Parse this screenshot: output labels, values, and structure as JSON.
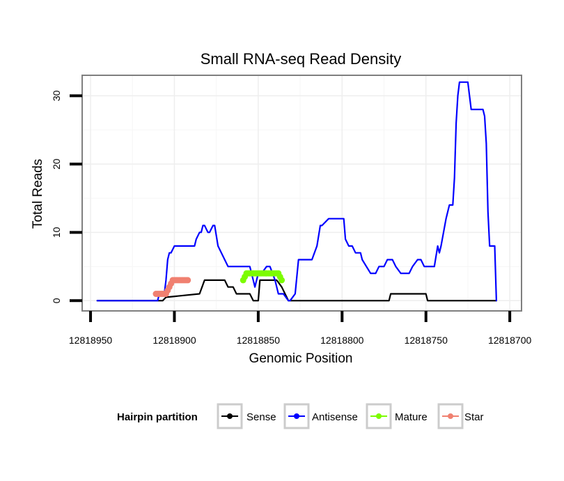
{
  "chart_data": {
    "type": "line",
    "title": "Small RNA-seq Read Density",
    "xlabel": "Genomic Position",
    "ylabel": "Total Reads",
    "x_reversed": true,
    "xlim": [
      12818955,
      12818693
    ],
    "ylim": [
      -1.5,
      33
    ],
    "x_ticks": [
      12818950,
      12818900,
      12818850,
      12818800,
      12818750,
      12818700
    ],
    "x_tick_labels": [
      "12818950",
      "12818900",
      "12818850",
      "12818800",
      "12818750",
      "12818700"
    ],
    "y_ticks": [
      0,
      10,
      20,
      30
    ],
    "y_tick_labels": [
      "0",
      "10",
      "20",
      "30"
    ],
    "legend": {
      "title": "Hairpin partition",
      "position": "bottom",
      "entries": [
        {
          "label": "Sense",
          "color": "#000000"
        },
        {
          "label": "Antisense",
          "color": "#0000ff"
        },
        {
          "label": "Mature",
          "color": "#7cfc00"
        },
        {
          "label": "Star",
          "color": "#f08070"
        }
      ]
    },
    "series": [
      {
        "name": "Sense",
        "color": "#000000",
        "markers": false,
        "x": [
          12818946,
          12818907,
          12818905,
          12818885,
          12818882,
          12818870,
          12818868,
          12818865,
          12818863,
          12818855,
          12818853,
          12818850,
          12818849,
          12818839,
          12818836,
          12818834,
          12818832,
          12818813,
          12818812,
          12818772,
          12818771,
          12818750,
          12818749,
          12818708
        ],
        "y": [
          0,
          0,
          0.5,
          1,
          3,
          3,
          2,
          2,
          1,
          1,
          0,
          0,
          3,
          3,
          2,
          1,
          0,
          0,
          0,
          0,
          1,
          1,
          0,
          0
        ]
      },
      {
        "name": "Antisense",
        "color": "#0000ff",
        "markers": false,
        "x": [
          12818946,
          12818910,
          12818909,
          12818906,
          12818905,
          12818904,
          12818903,
          12818902,
          12818900,
          12818888,
          12818887,
          12818885,
          12818884,
          12818883,
          12818882,
          12818880,
          12818879,
          12818877,
          12818876,
          12818874,
          12818872,
          12818870,
          12818868,
          12818866,
          12818863,
          12818855,
          12818853,
          12818852,
          12818850,
          12818848,
          12818845,
          12818843,
          12818840,
          12818838,
          12818835,
          12818832,
          12818831,
          12818828,
          12818826,
          12818825,
          12818823,
          12818820,
          12818818,
          12818815,
          12818813,
          12818812,
          12818808,
          12818806,
          12818805,
          12818803,
          12818800,
          12818799,
          12818798,
          12818796,
          12818794,
          12818792,
          12818790,
          12818789,
          12818788,
          12818783,
          12818782,
          12818780,
          12818778,
          12818777,
          12818775,
          12818773,
          12818770,
          12818768,
          12818765,
          12818762,
          12818760,
          12818758,
          12818755,
          12818753,
          12818751,
          12818749,
          12818747,
          12818745,
          12818743,
          12818742,
          12818741,
          12818738,
          12818736,
          12818735,
          12818734,
          12818733,
          12818732,
          12818731,
          12818730,
          12818729,
          12818728,
          12818727,
          12818726,
          12818725,
          12818724,
          12818723,
          12818722,
          12818717,
          12818716,
          12818715,
          12818714,
          12818713,
          12818712,
          12818711,
          12818710,
          12818709,
          12818708
        ],
        "y": [
          0,
          0,
          1,
          1,
          3,
          6,
          7,
          7,
          8,
          8,
          9,
          10,
          10,
          11,
          11,
          10,
          10,
          11,
          11,
          8,
          7,
          6,
          5,
          5,
          5,
          5,
          3,
          2,
          4,
          4,
          5,
          5,
          3,
          1,
          1,
          0,
          0,
          1,
          6,
          6,
          6,
          6,
          6,
          8,
          11,
          11,
          12,
          12,
          12,
          12,
          12,
          12,
          9,
          8,
          8,
          7,
          7,
          7,
          6,
          4,
          4,
          4,
          5,
          5,
          5,
          6,
          6,
          5,
          4,
          4,
          4,
          5,
          6,
          6,
          5,
          5,
          5,
          5,
          8,
          7,
          8,
          12,
          14,
          14,
          14,
          18,
          26,
          30,
          32,
          32,
          32,
          32,
          32,
          32,
          30,
          28,
          28,
          28,
          28,
          27,
          23,
          13,
          8,
          8,
          8,
          8,
          0
        ]
      },
      {
        "name": "Mature",
        "color": "#7cfc00",
        "markers": true,
        "x": [
          12818859,
          12818858,
          12818857,
          12818856,
          12818855,
          12818854,
          12818853,
          12818852,
          12818851,
          12818850,
          12818849,
          12818848,
          12818847,
          12818846,
          12818845,
          12818844,
          12818843,
          12818842,
          12818841,
          12818840,
          12818839,
          12818838,
          12818837,
          12818836
        ],
        "y": [
          3,
          3.5,
          4,
          4,
          4,
          4,
          4,
          4,
          4,
          4,
          4,
          4,
          4,
          4,
          4,
          4,
          4,
          4,
          4,
          4,
          4,
          4,
          3.5,
          3
        ]
      },
      {
        "name": "Star",
        "color": "#f08070",
        "markers": true,
        "x": [
          12818911,
          12818910,
          12818909,
          12818908,
          12818907,
          12818906,
          12818905,
          12818904,
          12818903,
          12818902,
          12818901,
          12818900,
          12818899,
          12818898,
          12818897,
          12818896,
          12818895,
          12818894,
          12818893,
          12818892
        ],
        "y": [
          1,
          1,
          1,
          1,
          1,
          1,
          1,
          1.5,
          2,
          2.5,
          3,
          3,
          3,
          3,
          3,
          3,
          3,
          3,
          3,
          3
        ]
      }
    ]
  }
}
